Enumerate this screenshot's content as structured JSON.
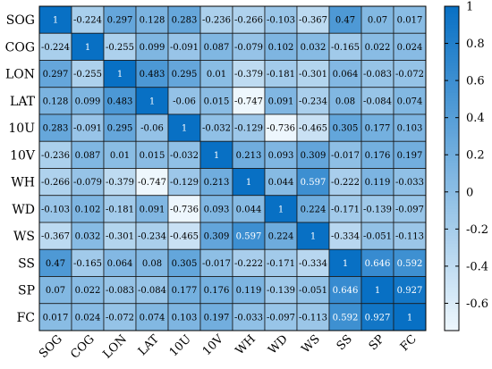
{
  "chart_data": {
    "type": "heatmap",
    "title": "",
    "labels": [
      "SOG",
      "COG",
      "LON",
      "LAT",
      "10U",
      "10V",
      "WH",
      "WD",
      "WS",
      "SS",
      "SP",
      "FC"
    ],
    "matrix": [
      [
        1,
        -0.224,
        0.297,
        0.128,
        0.283,
        -0.236,
        -0.266,
        -0.103,
        -0.367,
        0.47,
        0.07,
        0.017
      ],
      [
        -0.224,
        1,
        -0.255,
        0.099,
        -0.091,
        0.087,
        -0.079,
        0.102,
        0.032,
        -0.165,
        0.022,
        0.024
      ],
      [
        0.297,
        -0.255,
        1,
        0.483,
        0.295,
        0.01,
        -0.379,
        -0.181,
        -0.301,
        0.064,
        -0.083,
        -0.072
      ],
      [
        0.128,
        0.099,
        0.483,
        1,
        -0.06,
        0.015,
        -0.747,
        0.091,
        -0.234,
        0.08,
        -0.084,
        0.074
      ],
      [
        0.283,
        -0.091,
        0.295,
        -0.06,
        1,
        -0.032,
        -0.129,
        -0.736,
        -0.465,
        0.305,
        0.177,
        0.103
      ],
      [
        -0.236,
        0.087,
        0.01,
        0.015,
        -0.032,
        1,
        0.213,
        0.093,
        0.309,
        -0.017,
        0.176,
        0.197
      ],
      [
        -0.266,
        -0.079,
        -0.379,
        -0.747,
        -0.129,
        0.213,
        1,
        0.044,
        0.597,
        -0.222,
        0.119,
        -0.033
      ],
      [
        -0.103,
        0.102,
        -0.181,
        0.091,
        -0.736,
        0.093,
        0.044,
        1,
        0.224,
        -0.171,
        -0.139,
        -0.097
      ],
      [
        -0.367,
        0.032,
        -0.301,
        -0.234,
        -0.465,
        0.309,
        0.597,
        0.224,
        1,
        -0.334,
        -0.051,
        -0.113
      ],
      [
        0.47,
        -0.165,
        0.064,
        0.08,
        0.305,
        -0.017,
        -0.222,
        -0.171,
        -0.334,
        1,
        0.646,
        0.592
      ],
      [
        0.07,
        0.022,
        -0.083,
        -0.084,
        0.177,
        0.176,
        0.119,
        -0.139,
        -0.051,
        0.646,
        1,
        0.927
      ],
      [
        0.017,
        0.024,
        -0.072,
        0.074,
        0.103,
        0.197,
        -0.033,
        -0.097,
        -0.113,
        0.592,
        0.927,
        1
      ]
    ],
    "colorbar": {
      "range": [
        -0.747,
        1
      ],
      "ticks": [
        "1",
        "0.8",
        "0.6",
        "0.4",
        "0.2",
        "0",
        "-0.2",
        "-0.4",
        "-0.6"
      ],
      "colormap": "white-to-blue",
      "low_color": "#eef7fd",
      "high_color": "#0870c4"
    },
    "grid": true
  }
}
